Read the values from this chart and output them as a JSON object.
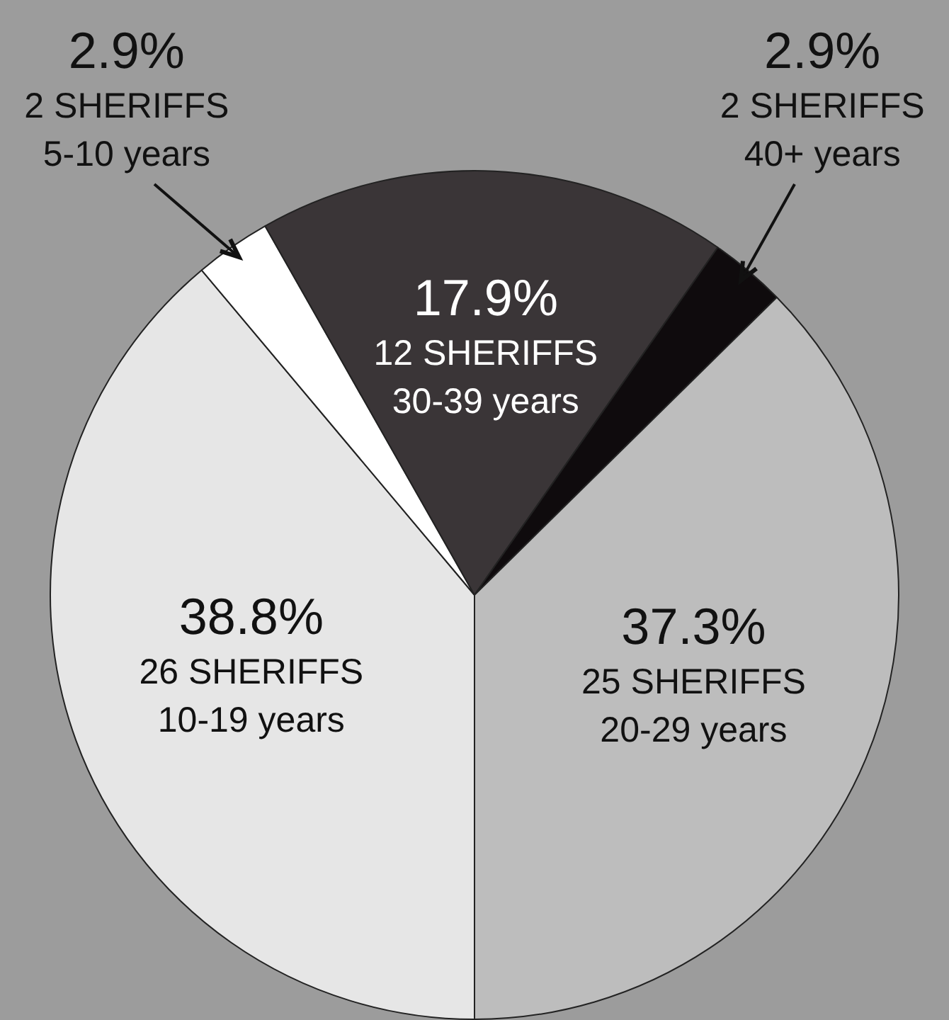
{
  "chart_data": {
    "type": "pie",
    "categories": [
      "10-19 years",
      "5-10 years",
      "30-39 years",
      "40+ years",
      "20-29 years"
    ],
    "values": [
      38.8,
      2.9,
      17.9,
      2.9,
      37.3
    ],
    "colors": [
      "#e6e6e6",
      "#ffffff",
      "#3a3537",
      "#0f0b0d",
      "#bdbdbd"
    ],
    "annotations": [
      "26 SHERIFFS",
      "2 SHERIFFS",
      "12 SHERIFFS",
      "2 SHERIFFS",
      "25 SHERIFFS"
    ],
    "value_labels": [
      "38.8%",
      "2.9%",
      "17.9%",
      "2.9%",
      "37.3%"
    ]
  }
}
